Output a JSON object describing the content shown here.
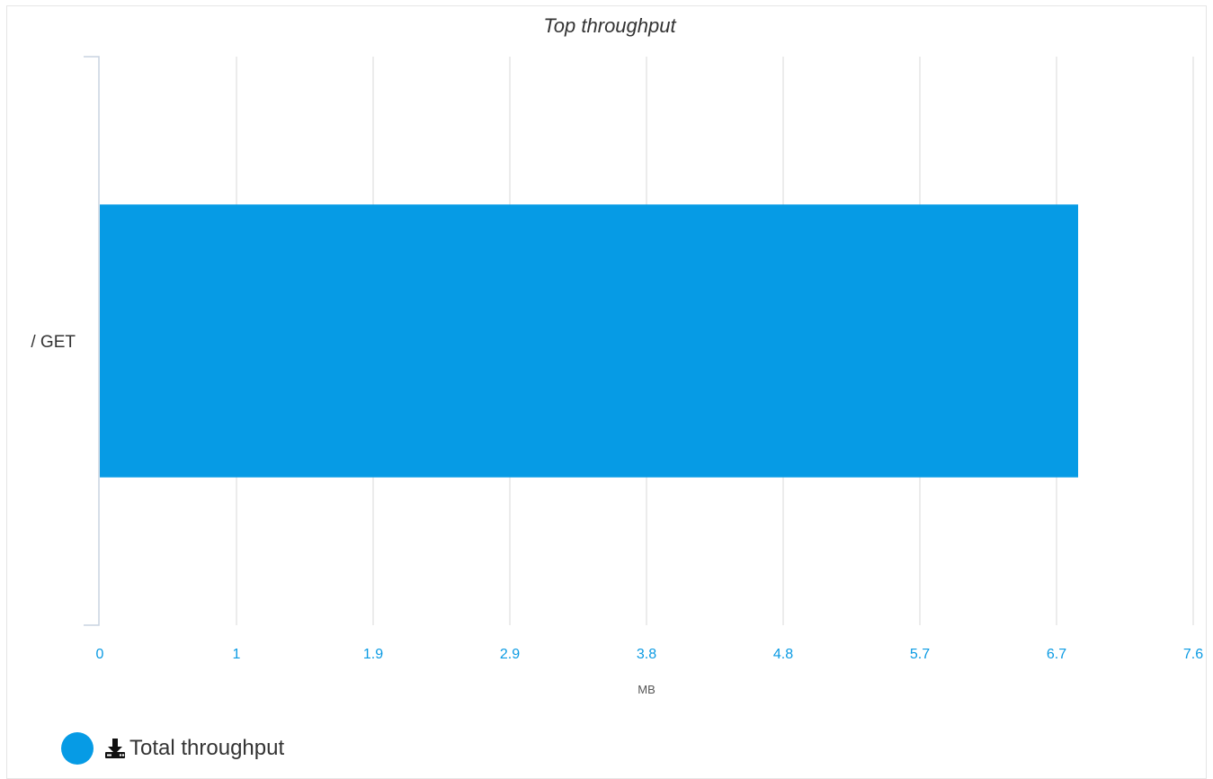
{
  "chart_data": {
    "type": "bar",
    "orientation": "horizontal",
    "title": "Top throughput",
    "xlabel": "MB",
    "ylabel": "",
    "categories": [
      "/ GET"
    ],
    "series": [
      {
        "name": "Total throughput",
        "values": [
          6.8
        ],
        "color": "#069be5"
      }
    ],
    "xlim": [
      0,
      7.6
    ],
    "x_ticks": [
      "0",
      "1",
      "1.9",
      "2.9",
      "3.8",
      "4.8",
      "5.7",
      "6.7",
      "7.6"
    ],
    "grid": true,
    "legend": "bottom-left",
    "legend_icon": "download-icon"
  }
}
